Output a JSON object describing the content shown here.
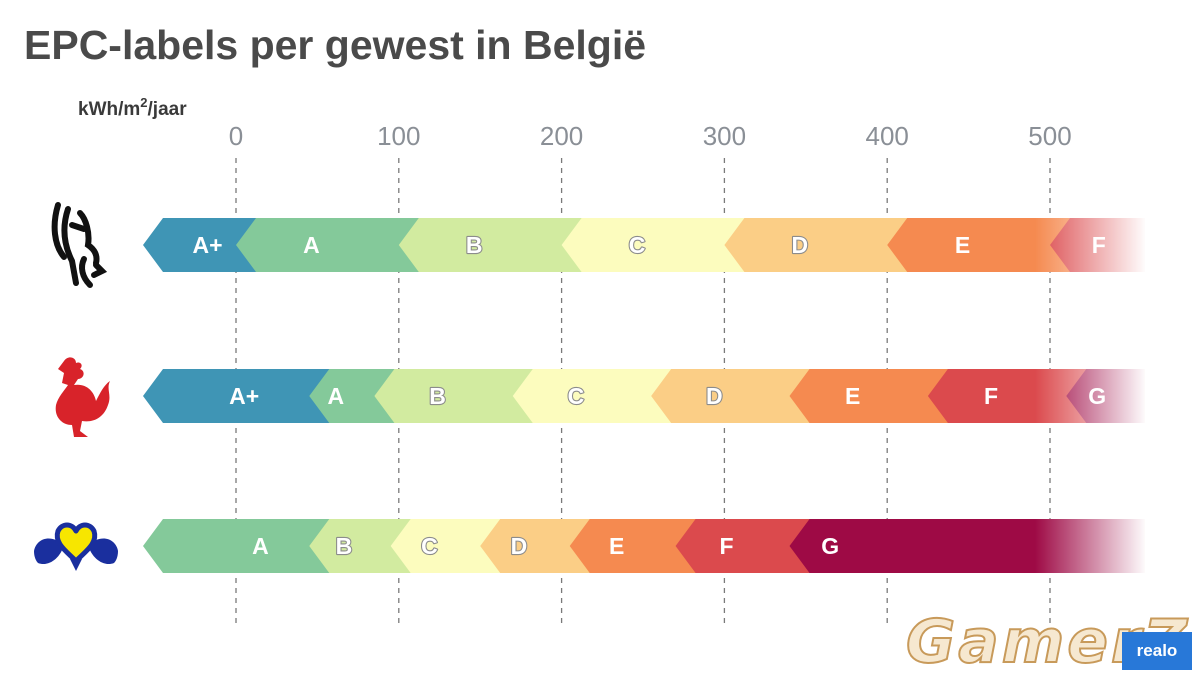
{
  "title": "EPC-labels per gewest in België",
  "watermark": {
    "gamerz": "GamerZ",
    "brand": "realo"
  },
  "chart_data": {
    "type": "bar",
    "title": "EPC-labels per gewest in België",
    "unit_label": "kWh/m²/jaar",
    "x_ticks": [
      0,
      100,
      200,
      300,
      400,
      500
    ],
    "xlim": [
      -55,
      555
    ],
    "grid": "vertical dashed lines at ticks",
    "colors": {
      "A+": "#3f95b5",
      "A": "#84c99a",
      "B": "#d2eba0",
      "C": "#fcfcbe",
      "D": "#fbce86",
      "E": "#f58a50",
      "F": "#db4a4d",
      "G": "#9e0a45"
    },
    "rows": [
      {
        "icon": "lion-icon",
        "segments": [
          {
            "label": "A+",
            "from": -55,
            "to": 0
          },
          {
            "label": "A",
            "from": 0,
            "to": 100
          },
          {
            "label": "B",
            "from": 100,
            "to": 200
          },
          {
            "label": "C",
            "from": 200,
            "to": 300
          },
          {
            "label": "D",
            "from": 300,
            "to": 400
          },
          {
            "label": "E",
            "from": 400,
            "to": 500
          },
          {
            "label": "F",
            "from": 500,
            "to": 555
          }
        ]
      },
      {
        "icon": "rooster-icon",
        "segments": [
          {
            "label": "A+",
            "from": -55,
            "to": 45
          },
          {
            "label": "A",
            "from": 45,
            "to": 85
          },
          {
            "label": "B",
            "from": 85,
            "to": 170
          },
          {
            "label": "C",
            "from": 170,
            "to": 255
          },
          {
            "label": "D",
            "from": 255,
            "to": 340
          },
          {
            "label": "E",
            "from": 340,
            "to": 425
          },
          {
            "label": "F",
            "from": 425,
            "to": 510
          },
          {
            "label": "G",
            "from": 510,
            "to": 555
          }
        ]
      },
      {
        "icon": "iris-icon",
        "segments": [
          {
            "label": "A",
            "from": -55,
            "to": 45
          },
          {
            "label": "B",
            "from": 45,
            "to": 95
          },
          {
            "label": "C",
            "from": 95,
            "to": 150
          },
          {
            "label": "D",
            "from": 150,
            "to": 205
          },
          {
            "label": "E",
            "from": 205,
            "to": 270
          },
          {
            "label": "F",
            "from": 270,
            "to": 340
          },
          {
            "label": "G",
            "from": 340,
            "to": 555
          }
        ]
      }
    ]
  }
}
